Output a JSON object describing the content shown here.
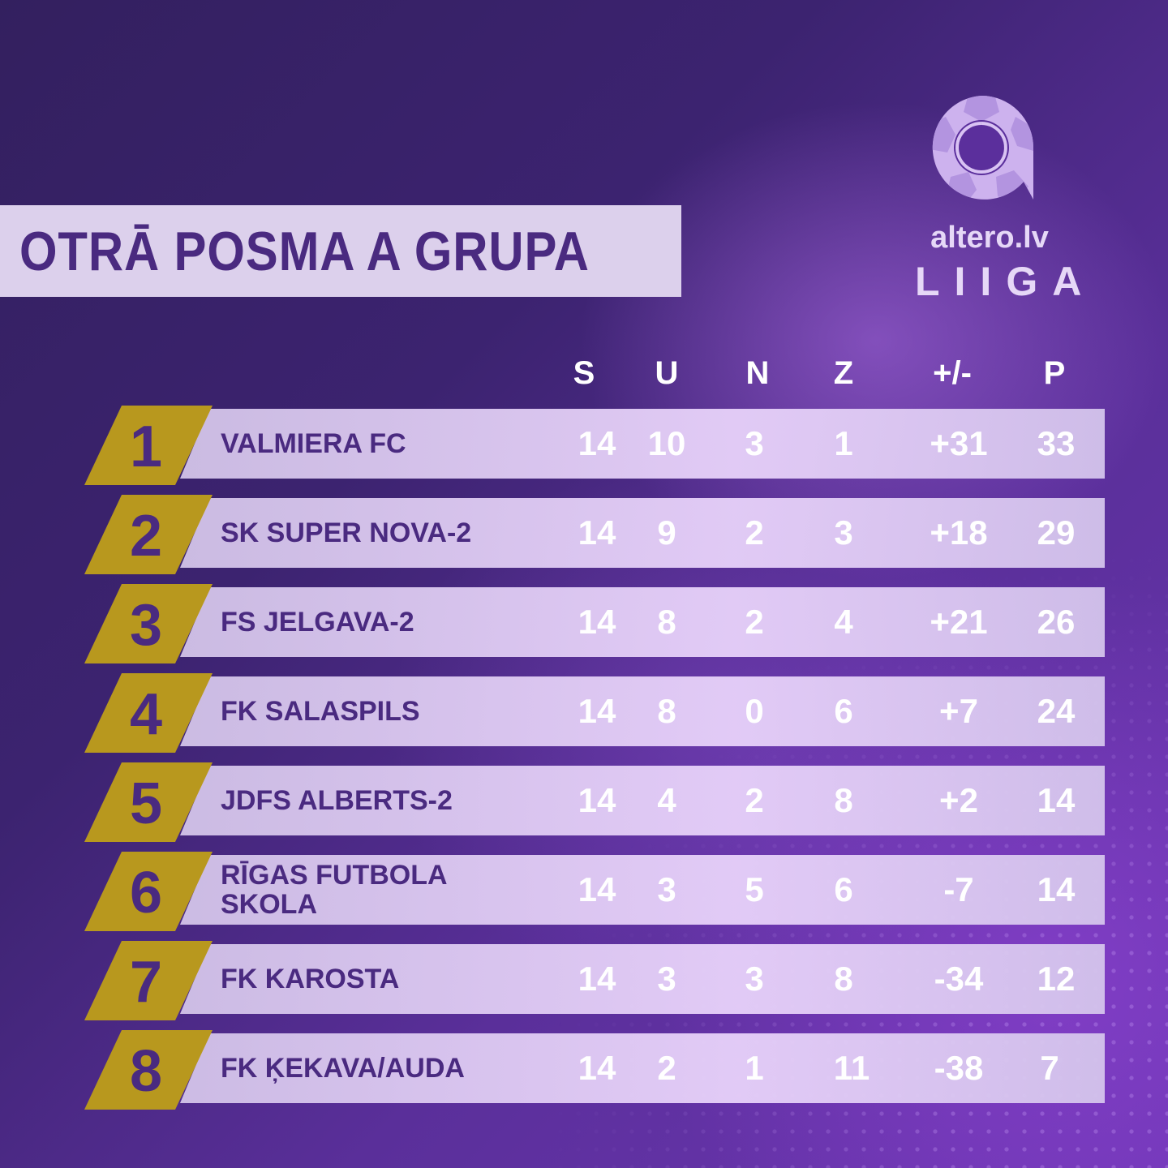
{
  "title": "OTRĀ POSMA A GRUPA",
  "logo": {
    "icon": "altero-football-a-icon",
    "site": "altero.lv",
    "league": "LIIGA"
  },
  "table": {
    "headers": [
      "S",
      "U",
      "N",
      "Z",
      "+/-",
      "P"
    ],
    "rows": [
      {
        "rank": "1",
        "team": "VALMIERA FC",
        "s": "14",
        "u": "10",
        "n": "3",
        "z": "1",
        "diff": "+31",
        "p": "33"
      },
      {
        "rank": "2",
        "team": "SK SUPER NOVA-2",
        "s": "14",
        "u": "9",
        "n": "2",
        "z": "3",
        "diff": "+18",
        "p": "29"
      },
      {
        "rank": "3",
        "team": "FS JELGAVA-2",
        "s": "14",
        "u": "8",
        "n": "2",
        "z": "4",
        "diff": "+21",
        "p": "26"
      },
      {
        "rank": "4",
        "team": "FK SALASPILS",
        "s": "14",
        "u": "8",
        "n": "0",
        "z": "6",
        "diff": "+7",
        "p": "24"
      },
      {
        "rank": "5",
        "team": "JDFS ALBERTS-2",
        "s": "14",
        "u": "4",
        "n": "2",
        "z": "8",
        "diff": "+2",
        "p": "14"
      },
      {
        "rank": "6",
        "team": "RĪGAS FUTBOLA SKOLA",
        "s": "14",
        "u": "3",
        "n": "5",
        "z": "6",
        "diff": "-7",
        "p": "14"
      },
      {
        "rank": "7",
        "team": "FK KAROSTA",
        "s": "14",
        "u": "3",
        "n": "3",
        "z": "8",
        "diff": "-34",
        "p": "12"
      },
      {
        "rank": "8",
        "team": "FK ĶEKAVA/AUDA",
        "s": "14",
        "u": "2",
        "n": "1",
        "z": "11",
        "diff": "-38",
        "p": "7"
      }
    ]
  },
  "colors": {
    "gold": "#b8981e",
    "purple_text": "#4a2a80",
    "bar": "#dcd0ec"
  }
}
